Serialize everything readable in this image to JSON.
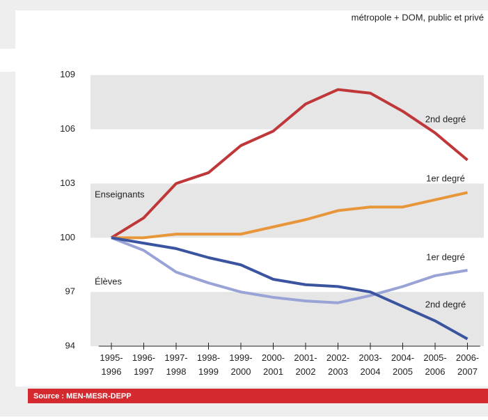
{
  "chart_data": {
    "type": "line",
    "subtitle": "métropole + DOM, public et privé",
    "categories": [
      "1995-1996",
      "1996-1997",
      "1997-1998",
      "1998-1999",
      "1999-2000",
      "2000-2001",
      "2001-2002",
      "2002-2003",
      "2003-2004",
      "2004-2005",
      "2005-2006",
      "2006-2007"
    ],
    "series": [
      {
        "name": "2nd degré",
        "color": "#c0373a",
        "values": [
          100,
          101.1,
          103.0,
          103.6,
          105.1,
          105.9,
          107.4,
          108.2,
          108.0,
          107.0,
          105.8,
          104.3
        ]
      },
      {
        "name": "1er degré",
        "color": "#e8963a",
        "values": [
          100,
          100.0,
          100.2,
          100.2,
          100.2,
          100.6,
          101.0,
          101.5,
          101.7,
          101.7,
          102.1,
          102.5
        ]
      },
      {
        "name": "1er degré",
        "color": "#9aa3d6",
        "values": [
          100,
          99.3,
          98.1,
          97.5,
          97.0,
          96.7,
          96.5,
          96.4,
          96.8,
          97.3,
          97.9,
          98.2
        ]
      },
      {
        "name": "2nd degré",
        "color": "#3a54a0",
        "values": [
          100,
          99.7,
          99.4,
          98.9,
          98.5,
          97.7,
          97.4,
          97.3,
          97.0,
          96.2,
          95.4,
          94.4
        ]
      }
    ],
    "annotations": [
      "Enseignants",
      "Élèves"
    ],
    "source": "Source : MEN-MESR-DEPP",
    "ylim": [
      94,
      112.5
    ],
    "yticks": [
      94,
      97,
      100,
      103,
      106,
      109
    ],
    "banded": true
  }
}
